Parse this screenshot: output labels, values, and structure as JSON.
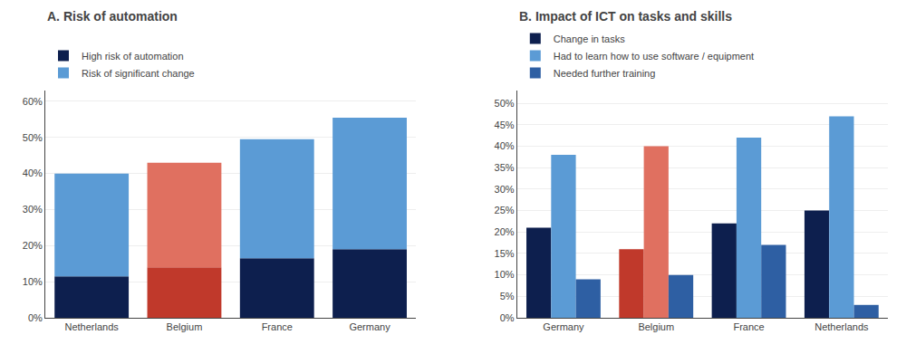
{
  "chart_data": [
    {
      "type": "bar",
      "stacked": true,
      "title": "A. Risk of automation",
      "categories": [
        "Netherlands",
        "Belgium",
        "France",
        "Germany"
      ],
      "series": [
        {
          "name": "High risk of automation",
          "colors": [
            "#0d1f4e",
            "#c0392b",
            "#0d1f4e",
            "#0d1f4e"
          ],
          "values": [
            0.115,
            0.14,
            0.165,
            0.19
          ]
        },
        {
          "name": "Risk of significant change",
          "colors": [
            "#5b9bd5",
            "#e07060",
            "#5b9bd5",
            "#5b9bd5"
          ],
          "values": [
            0.285,
            0.29,
            0.33,
            0.365
          ]
        }
      ],
      "ylim": [
        0,
        0.63
      ],
      "yticks": [
        {
          "value": 0,
          "label": "0%"
        },
        {
          "value": 0.1,
          "label": "10%"
        },
        {
          "value": 0.2,
          "label": "20%"
        },
        {
          "value": 0.3,
          "label": "30%"
        },
        {
          "value": 0.4,
          "label": "40%"
        },
        {
          "value": 0.5,
          "label": "50%"
        },
        {
          "value": 0.6,
          "label": "60%"
        }
      ],
      "grid": true,
      "legend": "upper left"
    },
    {
      "type": "bar",
      "stacked": false,
      "title": "B. Impact of ICT on tasks and skills",
      "categories": [
        "Germany",
        "Belgium",
        "France",
        "Netherlands"
      ],
      "series": [
        {
          "name": "Change in tasks",
          "colors": [
            "#0d1f4e",
            "#c0392b",
            "#0d1f4e",
            "#0d1f4e"
          ],
          "values": [
            0.21,
            0.16,
            0.22,
            0.25
          ]
        },
        {
          "name": "Had to learn how to use software / equipment",
          "colors": [
            "#5b9bd5",
            "#e07060",
            "#5b9bd5",
            "#5b9bd5"
          ],
          "values": [
            0.38,
            0.4,
            0.42,
            0.47
          ]
        },
        {
          "name": "Needed further training",
          "colors": [
            "#2e5fa3",
            "#2e5fa3",
            "#2e5fa3",
            "#2e5fa3"
          ],
          "values": [
            0.09,
            0.1,
            0.17,
            0.03
          ]
        }
      ],
      "ylim": [
        0,
        0.53
      ],
      "yticks": [
        {
          "value": 0,
          "label": "0%"
        },
        {
          "value": 0.05,
          "label": "5%"
        },
        {
          "value": 0.1,
          "label": "10%"
        },
        {
          "value": 0.15,
          "label": "15%"
        },
        {
          "value": 0.2,
          "label": "20%"
        },
        {
          "value": 0.25,
          "label": "25%"
        },
        {
          "value": 0.3,
          "label": "30%"
        },
        {
          "value": 0.35,
          "label": "35%"
        },
        {
          "value": 0.4,
          "label": "40%"
        },
        {
          "value": 0.45,
          "label": "45%"
        },
        {
          "value": 0.5,
          "label": "50%"
        }
      ],
      "grid": true,
      "legend": "upper left"
    }
  ]
}
